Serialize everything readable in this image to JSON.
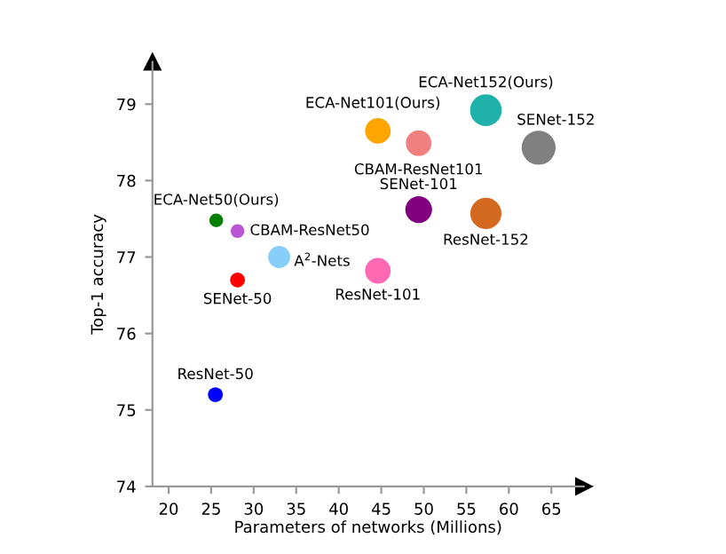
{
  "chart_data": {
    "type": "bubble",
    "xlabel": "Parameters of networks (Millions)",
    "ylabel": "Top-1 accuracy",
    "xlim": [
      18.1,
      68.8
    ],
    "ylim": [
      74,
      79.55
    ],
    "xticks": [
      20,
      25,
      30,
      35,
      40,
      45,
      50,
      55,
      60,
      65
    ],
    "yticks": [
      74,
      75,
      76,
      77,
      78,
      79
    ],
    "grid": false,
    "legend": false,
    "marker": "circle",
    "series": [
      {
        "name": "ResNet-50",
        "color": "#0000ff",
        "x": [
          25.5
        ],
        "values": [
          75.2
        ],
        "sizes": [
          0.19
        ]
      },
      {
        "name": "SENet-50",
        "color": "#ff0000",
        "x": [
          28.1
        ],
        "values": [
          76.7
        ],
        "sizes": [
          0.19
        ]
      },
      {
        "name": "ECA-Net50(Ours)",
        "color": "#008000",
        "x": [
          25.6
        ],
        "values": [
          77.48
        ],
        "sizes": [
          0.16
        ]
      },
      {
        "name": "CBAM-ResNet50",
        "color": "#ba55d3",
        "x": [
          28.1
        ],
        "values": [
          77.34
        ],
        "sizes": [
          0.16
        ]
      },
      {
        "name": "A$^{2}$-Nets",
        "color": "#87cefa",
        "x": [
          33.0
        ],
        "values": [
          77.0
        ],
        "sizes": [
          0.42
        ]
      },
      {
        "name": "ResNet-101",
        "color": "#ff69b4",
        "x": [
          44.6
        ],
        "values": [
          76.82
        ],
        "sizes": [
          0.57
        ]
      },
      {
        "name": "ECA-Net101(Ours)",
        "color": "#ffa500",
        "x": [
          44.6
        ],
        "values": [
          78.65
        ],
        "sizes": [
          0.57
        ]
      },
      {
        "name": "CBAM-ResNet101",
        "color": "#f08080",
        "x": [
          49.4
        ],
        "values": [
          78.49
        ],
        "sizes": [
          0.57
        ]
      },
      {
        "name": "SENet-101",
        "color": "#800080",
        "x": [
          49.4
        ],
        "values": [
          77.62
        ],
        "sizes": [
          0.62
        ]
      },
      {
        "name": "ResNet-152",
        "color": "#d2691e",
        "x": [
          57.3
        ],
        "values": [
          77.57
        ],
        "sizes": [
          0.84
        ]
      },
      {
        "name": "ECA-Net152(Ours)",
        "color": "#20b2aa",
        "x": [
          57.3
        ],
        "values": [
          78.92
        ],
        "sizes": [
          0.87
        ]
      },
      {
        "name": "SENet-152",
        "color": "#808080",
        "x": [
          63.5
        ],
        "values": [
          78.43
        ],
        "sizes": [
          1
        ]
      }
    ]
  }
}
